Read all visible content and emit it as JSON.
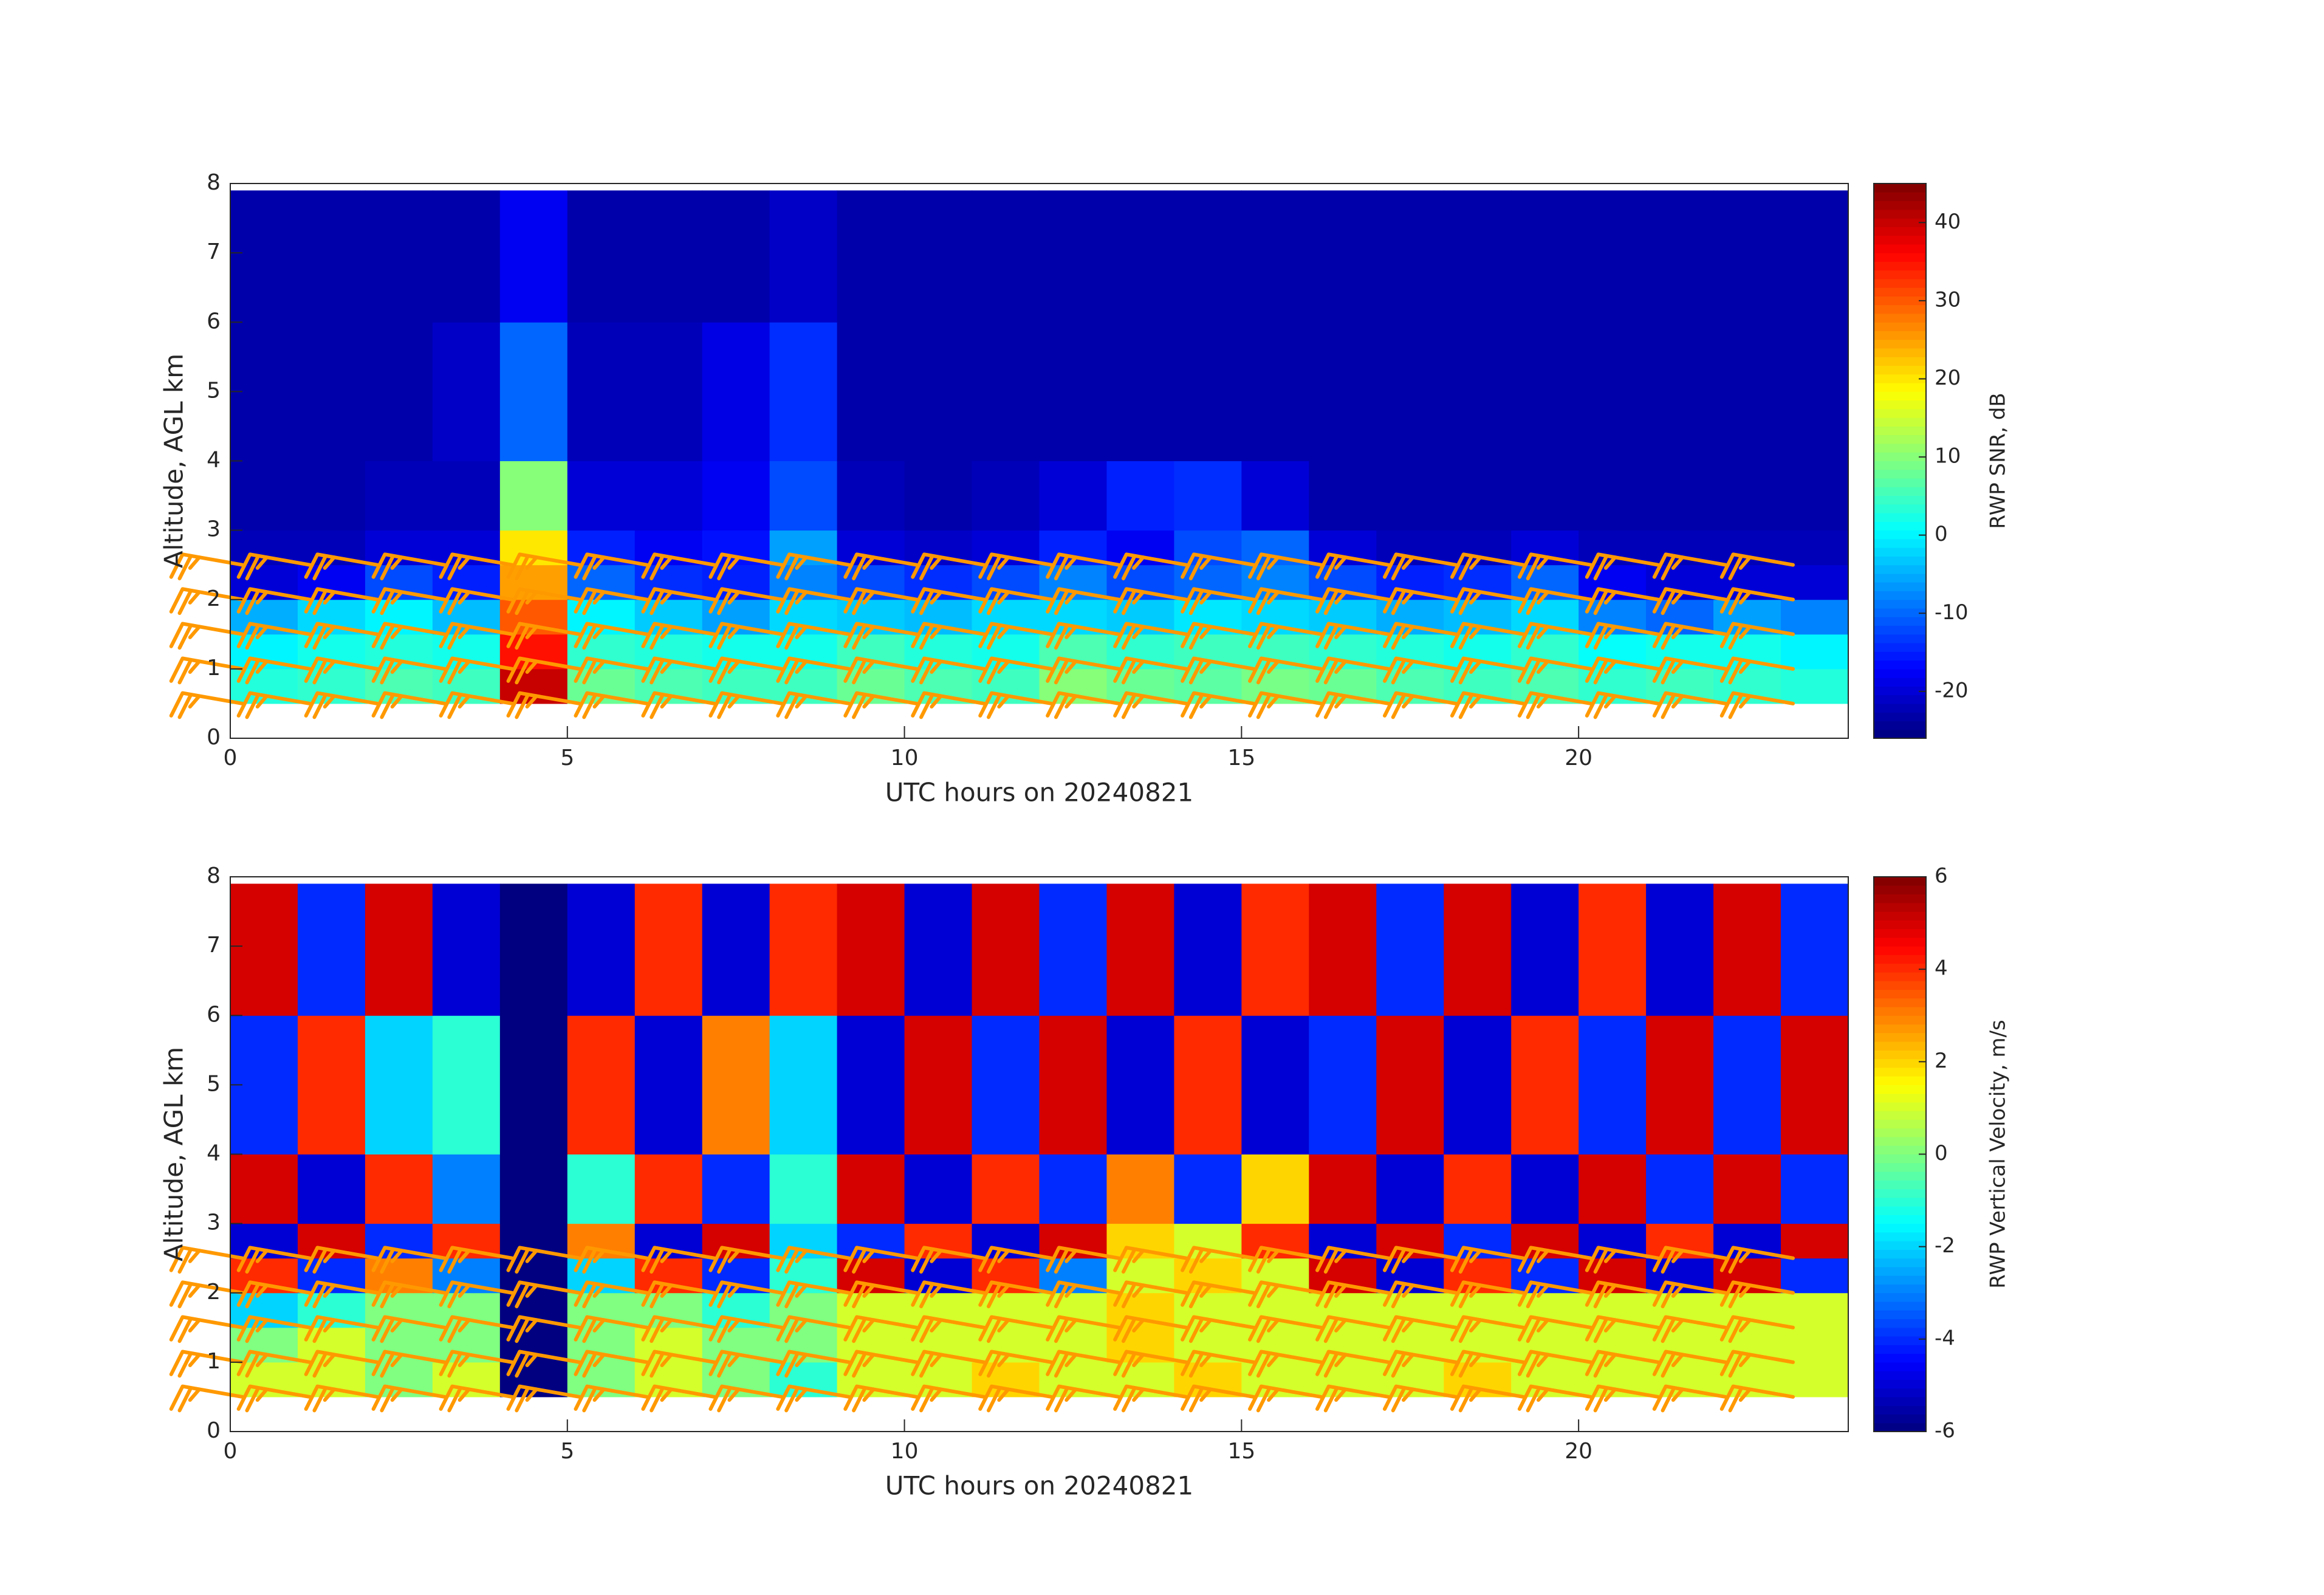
{
  "chart_data": [
    {
      "type": "heatmap",
      "colormap": "jet",
      "xlabel": "UTC hours on 20240821",
      "ylabel": "Altitude, AGL km",
      "colorbar_label": "RWP SNR, dB",
      "xlim": [
        0,
        24
      ],
      "ylim": [
        0,
        8
      ],
      "xticks": [
        0,
        5,
        10,
        15,
        20
      ],
      "yticks": [
        0,
        1,
        2,
        3,
        4,
        5,
        6,
        7,
        8
      ],
      "clim": [
        -26,
        45
      ],
      "cticks": [
        -20,
        -10,
        0,
        10,
        20,
        30,
        40
      ],
      "x_edges": [
        0,
        1,
        2,
        3,
        4,
        5,
        6,
        7,
        8,
        9,
        10,
        11,
        12,
        13,
        14,
        15,
        16,
        17,
        18,
        19,
        20,
        21,
        22,
        23,
        24
      ],
      "y_edges": [
        0.5,
        1,
        1.5,
        2,
        2.5,
        3,
        4,
        6,
        7.9
      ],
      "z": [
        [
          3,
          4,
          6,
          5,
          40,
          8,
          6,
          5,
          5,
          8,
          6,
          5,
          10,
          8,
          7,
          9,
          8,
          6,
          5,
          6,
          4,
          5,
          4,
          3
        ],
        [
          0,
          2,
          3,
          2,
          35,
          4,
          3,
          2,
          2,
          5,
          3,
          2,
          6,
          4,
          5,
          5,
          4,
          3,
          2,
          4,
          1,
          2,
          2,
          0
        ],
        [
          -5,
          -2,
          0,
          -4,
          30,
          0,
          -3,
          -6,
          -2,
          -3,
          -4,
          -2,
          -2,
          -3,
          -1,
          -2,
          -3,
          -5,
          -4,
          -2,
          -8,
          -10,
          -6,
          -8
        ],
        [
          -20,
          -18,
          -12,
          -15,
          25,
          -10,
          -14,
          -15,
          -8,
          -12,
          -14,
          -12,
          -8,
          -12,
          -10,
          -8,
          -12,
          -15,
          -14,
          -10,
          -18,
          -20,
          -20,
          -20
        ],
        [
          -22,
          -22,
          -20,
          -20,
          20,
          -15,
          -18,
          -16,
          -6,
          -20,
          -21,
          -20,
          -15,
          -18,
          -12,
          -10,
          -20,
          -22,
          -22,
          -20,
          -22,
          -22,
          -22,
          -22
        ],
        [
          -23,
          -23,
          -22,
          -22,
          10,
          -20,
          -20,
          -18,
          -12,
          -22,
          -23,
          -22,
          -20,
          -15,
          -14,
          -20,
          -23,
          -23,
          -23,
          -23,
          -23,
          -23,
          -23,
          -23
        ],
        [
          -23,
          -23,
          -23,
          -21,
          -10,
          -22,
          -22,
          -19,
          -14,
          -23,
          -23,
          -23,
          -23,
          -23,
          -23,
          -23,
          -23,
          -23,
          -23,
          -23,
          -23,
          -23,
          -23,
          -23
        ],
        [
          -23,
          -23,
          -23,
          -23,
          -18,
          -23,
          -23,
          -23,
          -21,
          -23,
          -23,
          -23,
          -23,
          -23,
          -23,
          -23,
          -23,
          -23,
          -23,
          -23,
          -23,
          -23,
          -23,
          -23
        ]
      ],
      "wind_barbs": {
        "color": "#ff9900",
        "x": [
          0,
          1,
          2,
          3,
          4,
          5,
          6,
          7,
          8,
          9,
          10,
          11,
          12,
          13,
          14,
          15,
          16,
          17,
          18,
          19,
          20,
          21,
          22,
          23
        ],
        "altitudes": [
          0.5,
          1,
          1.5,
          2,
          2.5
        ],
        "direction": 260,
        "speed": 25
      }
    },
    {
      "type": "heatmap",
      "colormap": "jet",
      "xlabel": "UTC hours on 20240821",
      "ylabel": "Altitude, AGL km",
      "colorbar_label": "RWP Vertical Velocity, m/s",
      "xlim": [
        0,
        24
      ],
      "ylim": [
        0,
        8
      ],
      "xticks": [
        0,
        5,
        10,
        15,
        20
      ],
      "yticks": [
        0,
        1,
        2,
        3,
        4,
        5,
        6,
        7,
        8
      ],
      "clim": [
        -6,
        6
      ],
      "cticks": [
        -6,
        -4,
        -2,
        0,
        2,
        4,
        6
      ],
      "x_edges": [
        0,
        1,
        2,
        3,
        4,
        5,
        6,
        7,
        8,
        9,
        10,
        11,
        12,
        13,
        14,
        15,
        16,
        17,
        18,
        19,
        20,
        21,
        22,
        23,
        24
      ],
      "y_edges": [
        0.5,
        1,
        1.5,
        2,
        2.5,
        3,
        4,
        6,
        7.9
      ],
      "z": [
        [
          1,
          1,
          0,
          1,
          -6,
          0,
          1,
          0,
          -1,
          1,
          1,
          2,
          1,
          1,
          2,
          1,
          1,
          1,
          2,
          1,
          1,
          1,
          1,
          1
        ],
        [
          0,
          1,
          0,
          0,
          -6,
          0,
          1,
          0,
          0,
          1,
          1,
          1,
          1,
          2,
          1,
          1,
          1,
          1,
          1,
          1,
          1,
          1,
          1,
          1
        ],
        [
          -2,
          -1,
          0,
          0,
          -6,
          0,
          0,
          -1,
          0,
          1,
          1,
          1,
          1,
          2,
          1,
          1,
          1,
          1,
          1,
          1,
          1,
          1,
          1,
          1
        ],
        [
          4,
          -4,
          3,
          -3,
          -6,
          -2,
          4,
          -4,
          -1,
          5,
          -5,
          4,
          -3,
          1,
          2,
          1,
          5,
          -5,
          4,
          -4,
          5,
          -5,
          5,
          -4
        ],
        [
          -5,
          5,
          -4,
          4,
          -6,
          3,
          -5,
          5,
          -2,
          -4,
          4,
          -5,
          5,
          2,
          1,
          4,
          -5,
          5,
          -4,
          5,
          -5,
          4,
          -5,
          5
        ],
        [
          5,
          -5,
          4,
          -3,
          -6,
          -1,
          4,
          -4,
          -1,
          5,
          -5,
          4,
          -4,
          3,
          -4,
          2,
          5,
          -5,
          4,
          -5,
          5,
          -4,
          5,
          -4
        ],
        [
          -4,
          4,
          -2,
          -1,
          -6,
          4,
          -5,
          3,
          -2,
          -5,
          5,
          -4,
          5,
          -5,
          4,
          -5,
          -4,
          5,
          -5,
          4,
          -4,
          5,
          -4,
          5
        ],
        [
          5,
          -4,
          5,
          -5,
          -6,
          -5,
          4,
          -5,
          4,
          5,
          -5,
          5,
          -4,
          5,
          -5,
          4,
          5,
          -4,
          5,
          -5,
          4,
          -5,
          5,
          -4
        ]
      ],
      "wind_barbs": {
        "color": "#ff9900",
        "x": [
          0,
          1,
          2,
          3,
          4,
          5,
          6,
          7,
          8,
          9,
          10,
          11,
          12,
          13,
          14,
          15,
          16,
          17,
          18,
          19,
          20,
          21,
          22,
          23
        ],
        "altitudes": [
          0.5,
          1,
          1.5,
          2,
          2.5
        ],
        "direction": 260,
        "speed": 25
      }
    }
  ]
}
